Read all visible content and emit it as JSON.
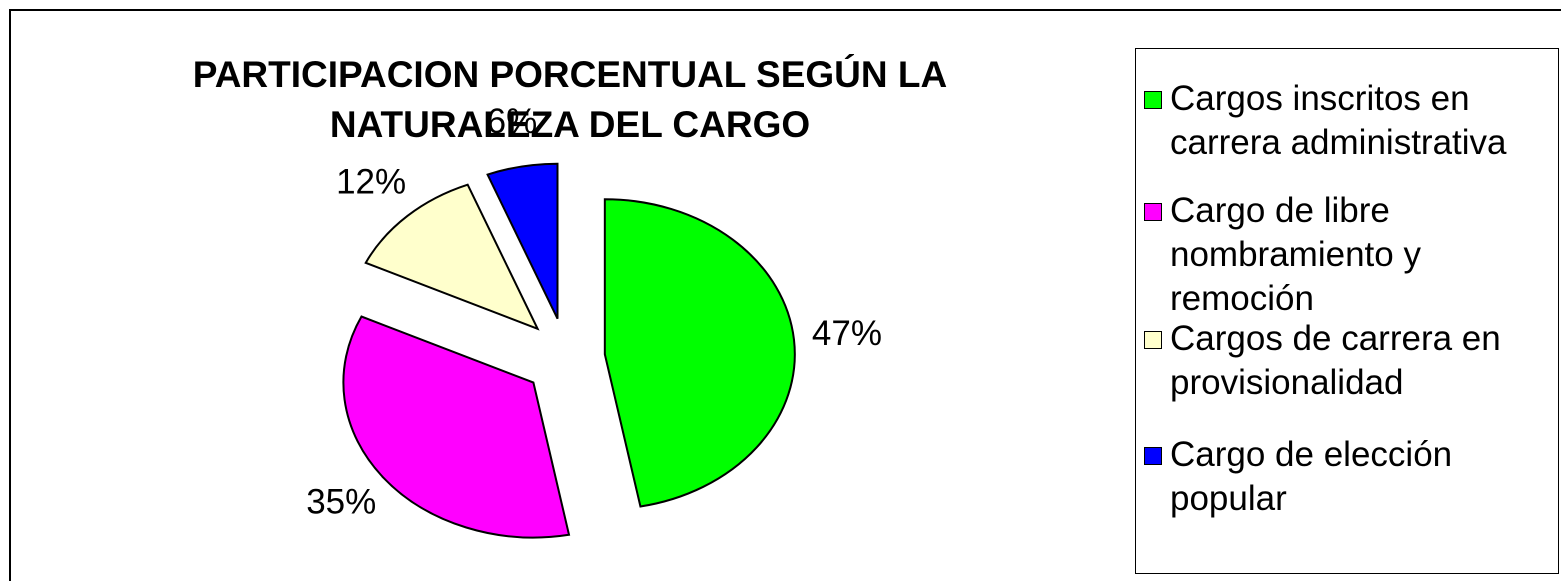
{
  "chart_data": {
    "type": "pie",
    "title": "PARTICIPACION PORCENTUAL SEGÚN LA NATURALEZA DEL CARGO",
    "categories": [
      "Cargos inscritos en carrera administrativa",
      "Cargo de libre nombramiento y remoción",
      "Cargos de carrera en provisionalidad",
      "Cargo de elección popular"
    ],
    "values": [
      47,
      35,
      12,
      6
    ],
    "value_labels": [
      "47%",
      "35%",
      "12%",
      "6%"
    ],
    "colors": [
      "#00ff00",
      "#ff00ff",
      "#ffffcc",
      "#0000ff"
    ],
    "legend": "right"
  }
}
